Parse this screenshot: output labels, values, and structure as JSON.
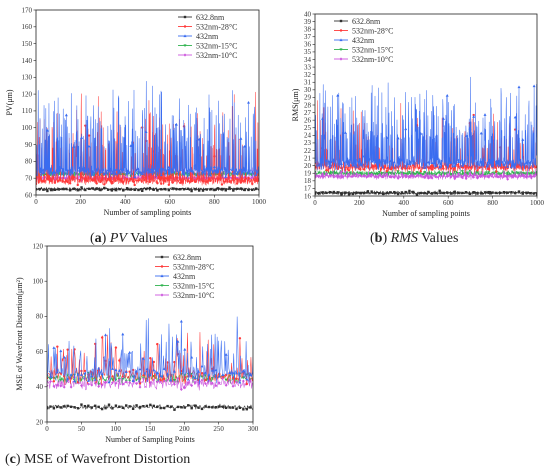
{
  "captions": [
    {
      "letter": "a",
      "emph": "PV",
      "rest": " Values"
    },
    {
      "letter": "b",
      "emph": "RMS",
      "rest": " Values"
    },
    {
      "letter": "c",
      "emph": "",
      "rest": " MSE of Wavefront Distortion"
    }
  ],
  "colors": {
    "s632": "#303030",
    "s532_28": "#ff3a3a",
    "s432": "#3a6cf0",
    "s532_15": "#2fb34f",
    "s532_10": "#cc55dd"
  },
  "chart_data": [
    {
      "id": "pv",
      "type": "line",
      "title": "",
      "xlabel": "Number of sampling points",
      "ylabel": "PV(μm)",
      "xlim": [
        0,
        1000
      ],
      "ylim": [
        60,
        170
      ],
      "xticks": [
        0,
        200,
        400,
        600,
        800,
        1000
      ],
      "yticks": [
        60,
        70,
        80,
        90,
        100,
        110,
        120,
        130,
        140,
        150,
        160,
        170
      ],
      "n_points": 1000,
      "legend_position": "top-right",
      "series": [
        {
          "name": "632.8nm",
          "color_key": "s632",
          "base": 63.5,
          "low_noise": 0.8,
          "spike_rate": 0.0,
          "spike_max": 0,
          "marker": "square"
        },
        {
          "name": "532nm-28°C",
          "color_key": "s532_28",
          "base": 68.5,
          "low_noise": 2.0,
          "spike_rate": 0.18,
          "spike_max": 56,
          "marker": "circle"
        },
        {
          "name": "432nm",
          "color_key": "s432",
          "base": 74,
          "low_noise": 2.5,
          "spike_rate": 0.25,
          "spike_max": 58,
          "marker": "triangle"
        },
        {
          "name": "532nm-15°C",
          "color_key": "s532_15",
          "base": 72.5,
          "low_noise": 1.2,
          "spike_rate": 0.0,
          "spike_max": 0,
          "marker": "triangle-down"
        },
        {
          "name": "532nm-10°C",
          "color_key": "s532_10",
          "base": 70,
          "low_noise": 1.0,
          "spike_rate": 0.05,
          "spike_max": 10,
          "marker": "diamond"
        }
      ]
    },
    {
      "id": "rms",
      "type": "line",
      "title": "",
      "xlabel": "Number of sampling points",
      "ylabel": "RMS(μm)",
      "xlim": [
        0,
        1000
      ],
      "ylim": [
        16,
        40
      ],
      "xticks": [
        0,
        200,
        400,
        600,
        800,
        1000
      ],
      "yticks": [
        16,
        17,
        18,
        19,
        20,
        21,
        22,
        23,
        24,
        25,
        26,
        27,
        28,
        29,
        30,
        31,
        32,
        33,
        34,
        35,
        36,
        37,
        38,
        39,
        40
      ],
      "n_points": 1000,
      "legend_position": "top-right",
      "series": [
        {
          "name": "632.8nm",
          "color_key": "s632",
          "base": 16.4,
          "low_noise": 0.2,
          "spike_rate": 0.0,
          "spike_max": 0,
          "marker": "square"
        },
        {
          "name": "532nm-28°C",
          "color_key": "s532_28",
          "base": 19.8,
          "low_noise": 0.5,
          "spike_rate": 0.12,
          "spike_max": 9,
          "marker": "circle"
        },
        {
          "name": "432nm",
          "color_key": "s432",
          "base": 20.3,
          "low_noise": 0.7,
          "spike_rate": 0.3,
          "spike_max": 12,
          "marker": "triangle"
        },
        {
          "name": "532nm-15°C",
          "color_key": "s532_15",
          "base": 19.0,
          "low_noise": 0.3,
          "spike_rate": 0.0,
          "spike_max": 0,
          "marker": "triangle-down"
        },
        {
          "name": "532nm-10°C",
          "color_key": "s532_10",
          "base": 18.6,
          "low_noise": 0.3,
          "spike_rate": 0.03,
          "spike_max": 2,
          "marker": "diamond"
        }
      ]
    },
    {
      "id": "mse",
      "type": "line",
      "title": "",
      "xlabel": "Number of Sampling Points",
      "ylabel": "MSE of Wavefront Distortion(μm²)",
      "xlim": [
        0,
        300
      ],
      "ylim": [
        20,
        120
      ],
      "xticks": [
        0,
        50,
        100,
        150,
        200,
        250,
        300
      ],
      "yticks": [
        20,
        40,
        60,
        80,
        100,
        120
      ],
      "n_points": 300,
      "legend_position": "top-right",
      "series": [
        {
          "name": "632.8nm",
          "color_key": "s632",
          "base": 28.5,
          "low_noise": 1.2,
          "spike_rate": 0.0,
          "spike_max": 0,
          "marker": "square"
        },
        {
          "name": "532nm-28°C",
          "color_key": "s532_28",
          "base": 46,
          "low_noise": 4,
          "spike_rate": 0.2,
          "spike_max": 30,
          "marker": "circle"
        },
        {
          "name": "432nm",
          "color_key": "s432",
          "base": 47,
          "low_noise": 4,
          "spike_rate": 0.22,
          "spike_max": 36,
          "marker": "triangle"
        },
        {
          "name": "532nm-15°C",
          "color_key": "s532_15",
          "base": 45,
          "low_noise": 2.5,
          "spike_rate": 0.0,
          "spike_max": 0,
          "marker": "triangle-down"
        },
        {
          "name": "532nm-10°C",
          "color_key": "s532_10",
          "base": 42,
          "low_noise": 2.5,
          "spike_rate": 0.0,
          "spike_max": 0,
          "marker": "diamond"
        }
      ]
    }
  ]
}
